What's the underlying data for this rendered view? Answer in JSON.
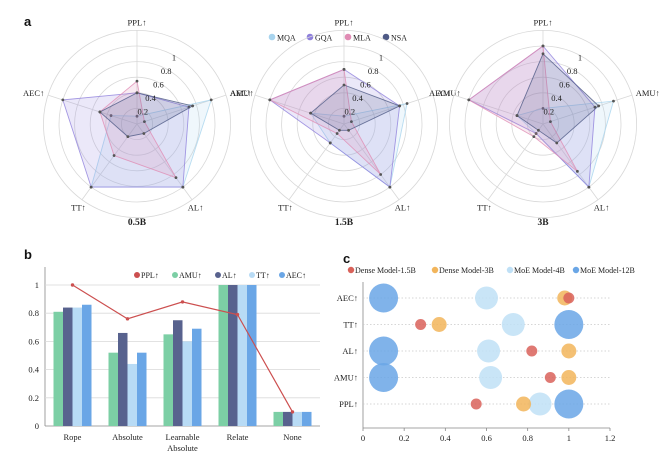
{
  "panels": {
    "a": "a",
    "b": "b",
    "c": "c"
  },
  "chart_data": [
    {
      "id": "a",
      "type": "radar",
      "axes": [
        "PPL↑",
        "AMU↑",
        "AL↑",
        "TT↑",
        "AEC↑"
      ],
      "radial_ticks": [
        "0.2",
        "0.4",
        "0.6",
        "0.8",
        "1"
      ],
      "radial_range": [
        0,
        1
      ],
      "legend": {
        "placement": "top-center",
        "entries": [
          {
            "name": "MQA",
            "color": "#a8d4ee"
          },
          {
            "name": "GQA",
            "color": "#8e7fdc"
          },
          {
            "name": "MLA",
            "color": "#e08cb4"
          },
          {
            "name": "NSA",
            "color": "#4f5a86"
          }
        ]
      },
      "subplots": [
        {
          "title": "0.5B",
          "series": [
            {
              "name": "MQA",
              "values": [
                0.1,
                1.0,
                1.0,
                1.0,
                0.35
              ]
            },
            {
              "name": "GQA",
              "values": [
                0.4,
                0.7,
                1.0,
                1.0,
                1.0
              ]
            },
            {
              "name": "MLA",
              "values": [
                0.55,
                0.1,
                0.85,
                0.5,
                0.5
              ]
            },
            {
              "name": "NSA",
              "values": [
                0.4,
                0.75,
                0.15,
                0.2,
                0.5
              ]
            }
          ]
        },
        {
          "title": "1.5B",
          "series": [
            {
              "name": "MQA",
              "values": [
                0.1,
                0.85,
                1.0,
                0.3,
                0.45
              ]
            },
            {
              "name": "GQA",
              "values": [
                0.7,
                0.75,
                1.0,
                0.3,
                1.0
              ]
            },
            {
              "name": "MLA",
              "values": [
                0.7,
                0.1,
                0.8,
                0.15,
                1.0
              ]
            },
            {
              "name": "NSA",
              "values": [
                0.5,
                0.75,
                0.1,
                0.1,
                0.45
              ]
            }
          ]
        },
        {
          "title": "3B",
          "series": [
            {
              "name": "MQA",
              "values": [
                0.2,
                0.95,
                1.0,
                0.15,
                0.35
              ]
            },
            {
              "name": "GQA",
              "values": [
                1.0,
                0.7,
                1.0,
                0.15,
                1.0
              ]
            },
            {
              "name": "MLA",
              "values": [
                1.0,
                0.1,
                0.75,
                0.2,
                1.0
              ]
            },
            {
              "name": "NSA",
              "values": [
                0.9,
                0.75,
                0.3,
                0.1,
                0.35
              ]
            }
          ]
        }
      ]
    },
    {
      "id": "b",
      "type": "bar",
      "categories": [
        "Rope",
        "Absolute",
        "Learnable Absolute",
        "Relate",
        "None"
      ],
      "category_lines": [
        [
          "Rope"
        ],
        [
          "Absolute"
        ],
        [
          "Learnable",
          "Absolute"
        ],
        [
          "Relate"
        ],
        [
          "None"
        ]
      ],
      "ylim": [
        0,
        1
      ],
      "yticks": [
        "0",
        "0.2",
        "0.4",
        "0.6",
        "0.8",
        "1"
      ],
      "grid": true,
      "legend": {
        "placement": "top-right"
      },
      "series": [
        {
          "name": "AMU↑",
          "color": "#7ccfa5",
          "values": [
            0.81,
            0.52,
            0.65,
            1.0,
            0.1
          ]
        },
        {
          "name": "AL↑",
          "color": "#58628e",
          "values": [
            0.84,
            0.66,
            0.75,
            1.0,
            0.1
          ]
        },
        {
          "name": "TT↑",
          "color": "#b8dbf5",
          "values": [
            0.84,
            0.44,
            0.6,
            1.0,
            0.1
          ]
        },
        {
          "name": "AEC↑",
          "color": "#6aa6e6",
          "values": [
            0.86,
            0.52,
            0.69,
            1.0,
            0.1
          ]
        }
      ],
      "line_series": {
        "name": "PPL↑",
        "color": "#cc4f4f",
        "values": [
          1.0,
          0.76,
          0.88,
          0.79,
          0.1
        ]
      },
      "legend_order": [
        "PPL↑",
        "AMU↑",
        "AL↑",
        "TT↑",
        "AEC↑"
      ]
    },
    {
      "id": "c",
      "type": "scatter",
      "subtype": "bubble",
      "categories": [
        "AEC↑",
        "TT↑",
        "AL↑",
        "AMU↑",
        "PPL↑"
      ],
      "xlim": [
        0,
        1.2
      ],
      "xticks": [
        "0",
        "0.2",
        "0.4",
        "0.6",
        "0.8",
        "1",
        "1.2"
      ],
      "legend": {
        "placement": "top"
      },
      "series": [
        {
          "name": "Dense Model-1.5B",
          "color": "#d9625a",
          "size_rank": 1,
          "values": {
            "AEC↑": 1.0,
            "TT↑": 0.28,
            "AL↑": 0.82,
            "AMU↑": 0.91,
            "PPL↑": 0.55
          }
        },
        {
          "name": "Dense Model-3B",
          "color": "#f2b55b",
          "size_rank": 2,
          "values": {
            "AEC↑": 0.98,
            "TT↑": 0.37,
            "AL↑": 1.0,
            "AMU↑": 1.0,
            "PPL↑": 0.78
          }
        },
        {
          "name": "MoE Model-4B",
          "color": "#bfe0f6",
          "size_rank": 3,
          "values": {
            "AEC↑": 0.6,
            "TT↑": 0.73,
            "AL↑": 0.61,
            "AMU↑": 0.62,
            "PPL↑": 0.86
          }
        },
        {
          "name": "MoE Model-12B",
          "color": "#6aa6e6",
          "size_rank": 4,
          "values": {
            "AEC↑": 0.1,
            "TT↑": 1.0,
            "AL↑": 0.1,
            "AMU↑": 0.1,
            "PPL↑": 1.0
          }
        }
      ]
    }
  ]
}
